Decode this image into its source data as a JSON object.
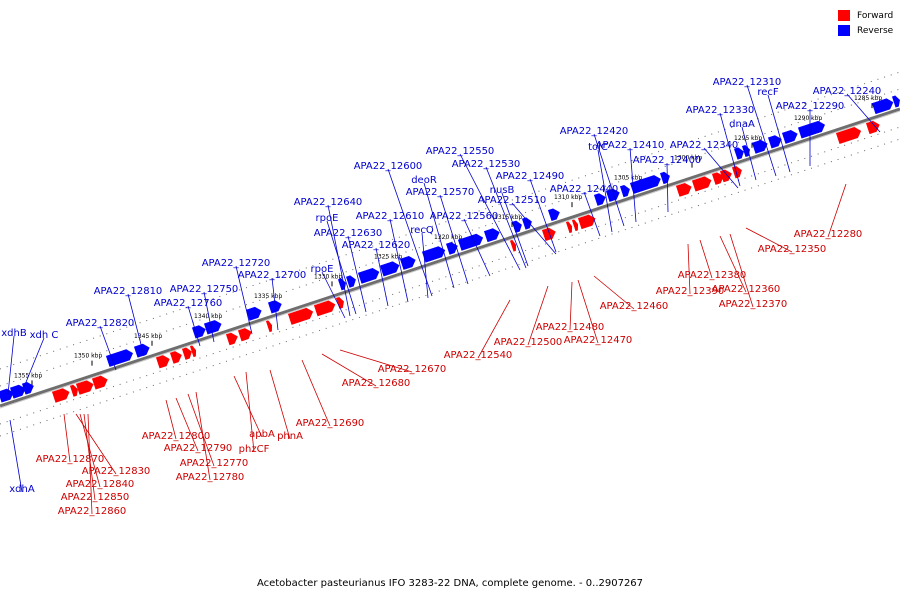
{
  "caption": "Acetobacter pasteurianus IFO 3283-22 DNA, complete genome. - 0..2907267",
  "legend": [
    {
      "label": "Forward",
      "color": "#ff0000"
    },
    {
      "label": "Reverse",
      "color": "#0000ff"
    }
  ],
  "colors": {
    "forward": "#ff0000",
    "reverse": "#0000ff",
    "backbone": "#6e6e6e",
    "label_forward": "#cc0000",
    "label_reverse": "#0000cc"
  },
  "ticks": [
    "1355 kbp",
    "1350 kbp",
    "1345 kbp",
    "1340 kbp",
    "1335 kbp",
    "1330 kbp",
    "1325 kbp",
    "1320 kbp",
    "1315 kbp",
    "1310 kbp",
    "1305 kbp",
    "1300 kbp",
    "1295 kbp",
    "1290 kbp",
    "1285 kbp"
  ],
  "reverse_labels": [
    "xdhB",
    "xdh C",
    "APA22_12820",
    "APA22_12810",
    "APA22_12760",
    "APA22_12750",
    "APA22_12720",
    "APA22_12700",
    "rpoE",
    "APA22_12640",
    "rpoE",
    "APA22_12630",
    "APA22_12620",
    "APA22_12610",
    "recQ",
    "APA22_12600",
    "deoR",
    "APA22_12570",
    "APA22_12560",
    "APA22_12550",
    "APA22_12530",
    "nusB",
    "APA22_12510",
    "APA22_12490",
    "APA22_12440",
    "tolC",
    "APA22_12420",
    "APA22_12410",
    "APA22_12400",
    "APA22_12340",
    "APA22_12330",
    "dnaA",
    "APA22_12310",
    "recF",
    "APA22_12290",
    "APA22_12240",
    "xdhA"
  ],
  "forward_labels": [
    "APA22_12870",
    "APA22_12830",
    "APA22_12840",
    "APA22_12850",
    "APA22_12860",
    "APA22_12800",
    "APA22_12790",
    "APA22_12770",
    "APA22_12780",
    "apbA",
    "phzCF",
    "phnA",
    "APA22_12690",
    "APA22_12680",
    "APA22_12670",
    "APA22_12540",
    "APA22_12500",
    "APA22_12480",
    "APA22_12470",
    "APA22_12460",
    "APA22_12390",
    "APA22_12380",
    "APA22_12360",
    "APA22_12370",
    "APA22_12350",
    "APA22_12280"
  ]
}
